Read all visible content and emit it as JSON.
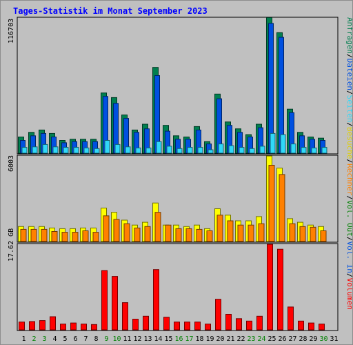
{
  "title": "Tages-Statistik im Monat September 2023",
  "colors": {
    "anfragen": "#007f4f",
    "dateien": "#0050e0",
    "seiten": "#30d8f8",
    "besuche": "#ffff00",
    "rechner": "#ff8000",
    "volumen": "#ff0000",
    "weekend_label": "#008000",
    "weekday_label": "#000000"
  },
  "right_label": [
    {
      "text": "Anfragen",
      "color": "#007f4f"
    },
    {
      "text": "/",
      "color": "#000000"
    },
    {
      "text": "Dateien",
      "color": "#0050e0"
    },
    {
      "text": "/",
      "color": "#000000"
    },
    {
      "text": "Seiten",
      "color": "#30d8f8"
    },
    {
      "text": "/",
      "color": "#000000"
    },
    {
      "text": "Besuche",
      "color": "#e0d000"
    },
    {
      "text": "/",
      "color": "#000000"
    },
    {
      "text": "Rechner",
      "color": "#ff8000"
    },
    {
      "text": "/",
      "color": "#000000"
    },
    {
      "text": "Vol. Out",
      "color": "#008000"
    },
    {
      "text": "/",
      "color": "#000000"
    },
    {
      "text": "Vol. In",
      "color": "#0050e0"
    },
    {
      "text": "/",
      "color": "#000000"
    },
    {
      "text": "Volumen",
      "color": "#ff0000"
    }
  ],
  "chart_data": [
    {
      "type": "bar",
      "panel": "top",
      "ymax": 116703,
      "ymax_label": "116703",
      "categories": [
        "1",
        "2",
        "3",
        "4",
        "5",
        "6",
        "7",
        "8",
        "9",
        "10",
        "11",
        "12",
        "13",
        "14",
        "15",
        "16",
        "17",
        "18",
        "19",
        "20",
        "21",
        "22",
        "23",
        "24",
        "25",
        "26",
        "27",
        "28",
        "29",
        "30",
        "31"
      ],
      "series": [
        {
          "name": "Anfragen",
          "values": [
            14000,
            18000,
            20000,
            17000,
            11000,
            12000,
            12000,
            12000,
            52000,
            48000,
            33000,
            20000,
            25000,
            74000,
            24000,
            15000,
            14000,
            23000,
            10000,
            51000,
            27000,
            21000,
            16000,
            25000,
            117000,
            104000,
            38000,
            18000,
            14000,
            13000,
            0
          ]
        },
        {
          "name": "Dateien",
          "values": [
            11000,
            15000,
            17000,
            14000,
            9000,
            10000,
            10000,
            10000,
            49000,
            43000,
            30000,
            18000,
            21000,
            67000,
            19000,
            12000,
            12000,
            20000,
            8000,
            47000,
            24000,
            18000,
            14000,
            22000,
            112000,
            100000,
            35000,
            15000,
            12000,
            11000,
            0
          ]
        },
        {
          "name": "Seiten",
          "values": [
            5000,
            5500,
            7500,
            5500,
            5000,
            5000,
            4500,
            4000,
            11000,
            7500,
            5500,
            4500,
            4500,
            10000,
            6000,
            4000,
            5000,
            5000,
            3000,
            8000,
            6500,
            5000,
            4000,
            6000,
            17000,
            16000,
            8000,
            5000,
            4500,
            5000,
            0
          ]
        }
      ]
    },
    {
      "type": "bar",
      "panel": "middle",
      "ymax": 6003,
      "ymax_label": "6003",
      "categories": [
        "1",
        "2",
        "3",
        "4",
        "5",
        "6",
        "7",
        "8",
        "9",
        "10",
        "11",
        "12",
        "13",
        "14",
        "15",
        "16",
        "17",
        "18",
        "19",
        "20",
        "21",
        "22",
        "23",
        "24",
        "25",
        "26",
        "27",
        "28",
        "29",
        "30",
        "31"
      ],
      "series": [
        {
          "name": "Besuche",
          "values": [
            1050,
            1050,
            1050,
            950,
            900,
            900,
            950,
            950,
            2350,
            2050,
            1500,
            1150,
            1350,
            2700,
            1150,
            1150,
            1050,
            1150,
            900,
            2300,
            1850,
            1450,
            1450,
            1750,
            6000,
            5150,
            1600,
            1350,
            1150,
            1050,
            0
          ]
        },
        {
          "name": "Rechner",
          "values": [
            850,
            850,
            850,
            700,
            650,
            650,
            750,
            650,
            1800,
            1550,
            1250,
            950,
            1050,
            2050,
            1150,
            900,
            900,
            850,
            750,
            1850,
            1450,
            1150,
            1150,
            1250,
            5350,
            4700,
            1250,
            1050,
            1000,
            750,
            0
          ]
        }
      ]
    },
    {
      "type": "bar",
      "panel": "bottom",
      "ymax": 17.62,
      "ymax_label": "17.62 GB",
      "categories": [
        "1",
        "2",
        "3",
        "4",
        "5",
        "6",
        "7",
        "8",
        "9",
        "10",
        "11",
        "12",
        "13",
        "14",
        "15",
        "16",
        "17",
        "18",
        "19",
        "20",
        "21",
        "22",
        "23",
        "24",
        "25",
        "26",
        "27",
        "28",
        "29",
        "30",
        "31"
      ],
      "series": [
        {
          "name": "Volumen",
          "values": [
            1.6,
            1.7,
            1.9,
            2.7,
            1.2,
            1.4,
            1.2,
            1.1,
            12.2,
            11.0,
            5.6,
            2.2,
            2.8,
            12.4,
            2.6,
            1.6,
            1.6,
            1.6,
            1.2,
            6.3,
            3.2,
            2.3,
            1.8,
            2.8,
            17.6,
            16.6,
            4.7,
            1.8,
            1.4,
            1.2,
            0
          ]
        }
      ]
    }
  ],
  "x_labels": [
    {
      "text": "1",
      "weekend": false
    },
    {
      "text": "2",
      "weekend": true
    },
    {
      "text": "3",
      "weekend": true
    },
    {
      "text": "4",
      "weekend": false
    },
    {
      "text": "5",
      "weekend": false
    },
    {
      "text": "6",
      "weekend": false
    },
    {
      "text": "7",
      "weekend": false
    },
    {
      "text": "8",
      "weekend": false
    },
    {
      "text": "9",
      "weekend": true
    },
    {
      "text": "10",
      "weekend": true
    },
    {
      "text": "11",
      "weekend": false
    },
    {
      "text": "12",
      "weekend": false
    },
    {
      "text": "13",
      "weekend": false
    },
    {
      "text": "14",
      "weekend": false
    },
    {
      "text": "15",
      "weekend": false
    },
    {
      "text": "16",
      "weekend": true
    },
    {
      "text": "17",
      "weekend": true
    },
    {
      "text": "18",
      "weekend": false
    },
    {
      "text": "19",
      "weekend": false
    },
    {
      "text": "20",
      "weekend": false
    },
    {
      "text": "21",
      "weekend": false
    },
    {
      "text": "22",
      "weekend": false
    },
    {
      "text": "23",
      "weekend": true
    },
    {
      "text": "24",
      "weekend": true
    },
    {
      "text": "25",
      "weekend": false
    },
    {
      "text": "26",
      "weekend": false
    },
    {
      "text": "27",
      "weekend": false
    },
    {
      "text": "28",
      "weekend": false
    },
    {
      "text": "29",
      "weekend": false
    },
    {
      "text": "30",
      "weekend": true
    },
    {
      "text": "31",
      "weekend": false
    }
  ]
}
